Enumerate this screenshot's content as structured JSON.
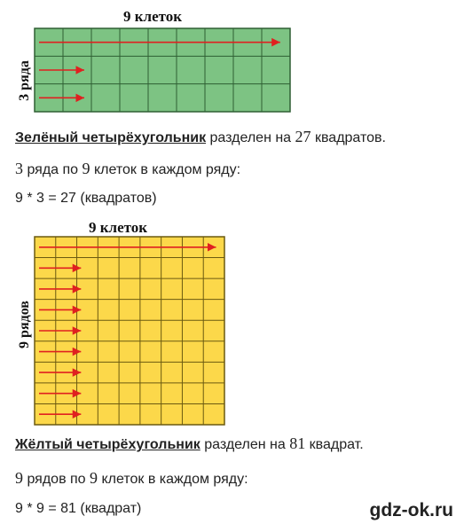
{
  "green_figure": {
    "title": "9 клеток",
    "side_label": "3 ряда",
    "columns": 9,
    "rows": 3,
    "fill_color": "#7dc383",
    "line_color": "#2f5f33",
    "arrow_color": "#e02020",
    "arrows": [
      "row-1-full",
      "row-2-short",
      "row-3-short"
    ]
  },
  "green_text": {
    "line1_term": "Зелёный четырёхугольник",
    "line1_rest": " разделен на ",
    "line1_num": "27",
    "line1_end": " квадратов.",
    "line2_num1": "3",
    "line2_mid": " ряда по ",
    "line2_num2": "9",
    "line2_end": " клеток в каждом ряду:",
    "line3": "9 * 3 = 27 (квадратов)"
  },
  "yellow_figure": {
    "title": "9 клеток",
    "side_label": "9 рядов",
    "columns": 9,
    "rows": 9,
    "fill_color": "#fcd84a",
    "line_color": "#6b5a10",
    "arrow_color": "#e02020"
  },
  "yellow_text": {
    "line1_term": "Жёлтый четырёхугольник",
    "line1_rest": " разделен на ",
    "line1_num": "81",
    "line1_end": " квадрат.",
    "line2_num1": "9",
    "line2_mid": " рядов по ",
    "line2_num2": "9",
    "line2_end": " клеток в каждом ряду:",
    "line3": "9 * 9 = 81 (квадрат)"
  },
  "watermark": "gdz-ok.ru"
}
